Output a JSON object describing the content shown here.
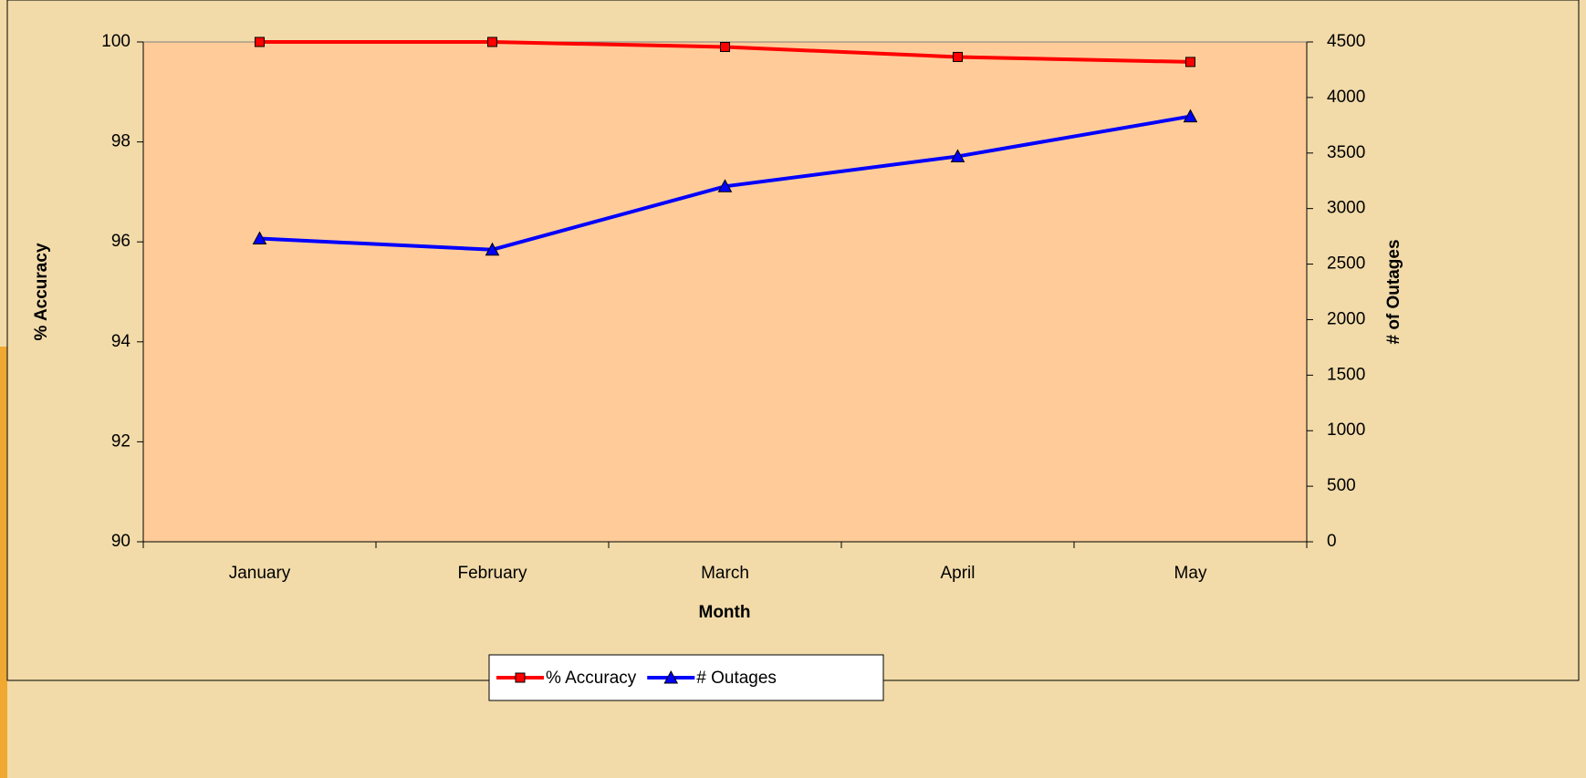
{
  "chart_data": {
    "type": "line",
    "x_label": "Month",
    "y_label": "% Accuracy",
    "y2_label": "# of Outages",
    "categories": [
      "January",
      "February",
      "March",
      "April",
      "May"
    ],
    "series": [
      {
        "name": "% Accuracy",
        "color": "#ff0000",
        "marker": "square",
        "values": [
          100,
          100,
          99.9,
          99.7,
          99.6
        ]
      },
      {
        "name": "# Outages",
        "color": "#0000ff",
        "marker": "triangle",
        "axis": "y2",
        "values": [
          2730,
          2630,
          3200,
          3470,
          3830
        ]
      }
    ],
    "ylim": [
      90,
      100
    ],
    "yticks": [
      90,
      92,
      94,
      96,
      98,
      100
    ],
    "y2lim": [
      0,
      4500
    ],
    "y2ticks": [
      0,
      500,
      1000,
      1500,
      2000,
      2500,
      3000,
      3500,
      4000,
      4500
    ],
    "legend": "bottom",
    "plot_background": "#ffcc99"
  }
}
